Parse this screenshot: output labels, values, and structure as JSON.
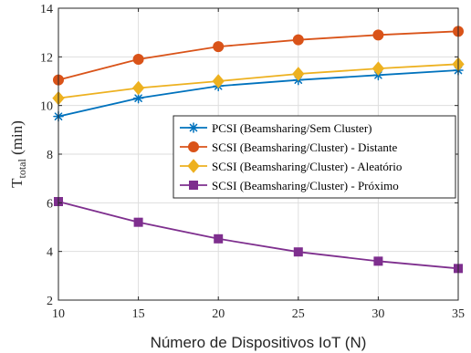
{
  "chart_data": {
    "type": "line",
    "x": [
      10,
      15,
      20,
      25,
      30,
      35
    ],
    "xlim": [
      10,
      35
    ],
    "ylim": [
      2,
      14
    ],
    "xticks": [
      10,
      15,
      20,
      25,
      30,
      35
    ],
    "yticks": [
      2,
      4,
      6,
      8,
      10,
      12,
      14
    ],
    "xlabel": "Número de Dispositivos IoT (N)",
    "ylabel": {
      "main": "T",
      "sub": "total",
      "unit": "(min)"
    },
    "grid": true,
    "legend_position": "center-right",
    "series": [
      {
        "name": "PCSI (Beamsharing/Sem Cluster)",
        "color": "#0072bd",
        "marker": "asterisk",
        "values": [
          9.55,
          10.3,
          10.8,
          11.05,
          11.25,
          11.45
        ]
      },
      {
        "name": "SCSI (Beamsharing/Cluster) - Distante",
        "color": "#d95319",
        "marker": "circle",
        "values": [
          11.05,
          11.9,
          12.42,
          12.7,
          12.9,
          13.05
        ]
      },
      {
        "name": "SCSI (Beamsharing/Cluster) - Aleatório",
        "color": "#edb120",
        "marker": "diamond",
        "values": [
          10.3,
          10.72,
          11.0,
          11.3,
          11.52,
          11.7
        ]
      },
      {
        "name": "SCSI (Beamsharing/Cluster) - Próximo",
        "color": "#7e2f8e",
        "marker": "square",
        "values": [
          6.05,
          5.2,
          4.52,
          3.98,
          3.6,
          3.3
        ]
      }
    ]
  }
}
